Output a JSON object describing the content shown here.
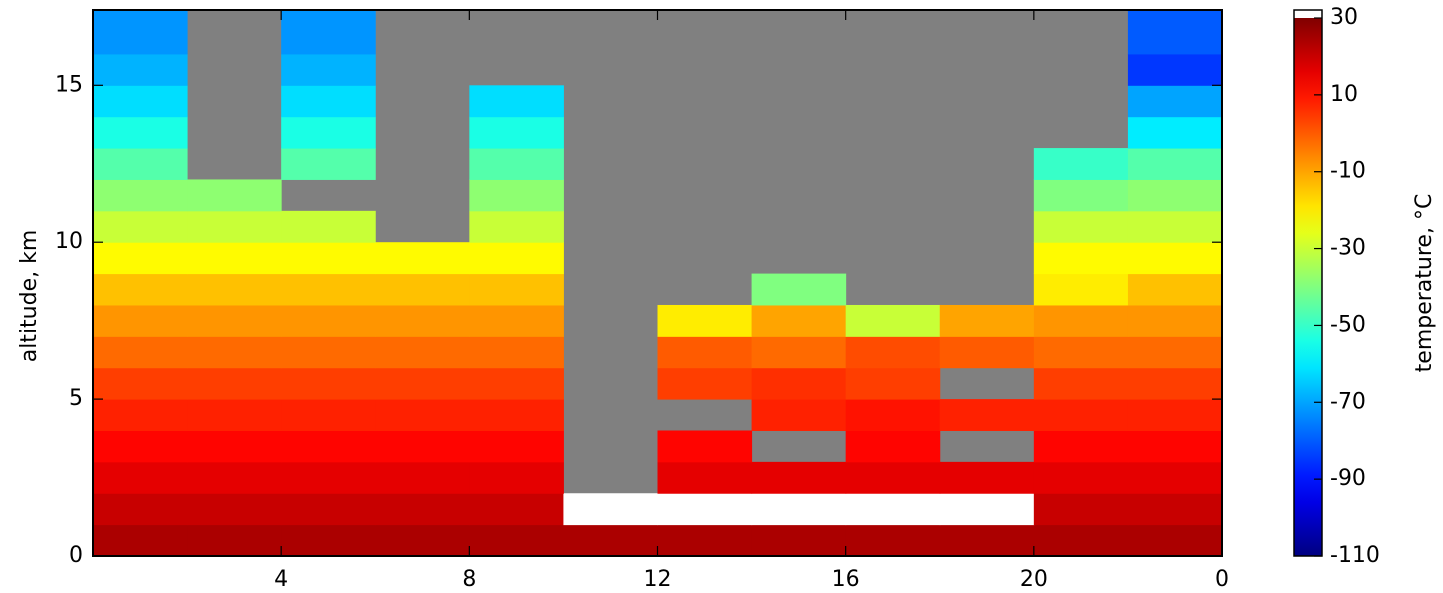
{
  "chart_data": {
    "type": "heatmap",
    "y_label": "altitude, km",
    "colorbar_label": "temperature, °C",
    "x_edges": [
      0,
      2,
      4,
      6,
      8,
      10,
      12,
      14,
      16,
      18,
      20,
      22,
      24
    ],
    "y_edges": [
      0,
      1,
      2,
      3,
      4,
      5,
      6,
      7,
      8,
      9,
      10,
      11,
      12,
      13,
      14,
      15,
      16,
      17.4
    ],
    "z": [
      [
        24,
        24,
        24,
        24,
        24,
        24,
        24,
        24,
        24,
        24,
        24,
        24
      ],
      [
        20,
        20,
        20,
        20,
        20,
        31,
        31,
        31,
        31,
        31,
        20,
        20
      ],
      [
        16,
        16,
        16,
        16,
        16,
        null,
        16,
        16,
        16,
        16,
        16,
        16
      ],
      [
        12,
        12,
        12,
        12,
        12,
        null,
        12,
        null,
        12,
        null,
        12,
        12
      ],
      [
        8,
        8,
        8,
        8,
        8,
        null,
        null,
        8,
        10,
        8,
        8,
        8
      ],
      [
        4,
        4,
        4,
        4,
        4,
        null,
        4,
        6,
        4,
        null,
        4,
        4
      ],
      [
        -2,
        -2,
        -2,
        -2,
        -2,
        null,
        0,
        -2,
        2,
        0,
        -2,
        -2
      ],
      [
        -8,
        -8,
        -8,
        -8,
        -8,
        null,
        -20,
        -10,
        -30,
        -10,
        -8,
        -8
      ],
      [
        -14,
        -14,
        -14,
        -14,
        -14,
        null,
        null,
        -40,
        null,
        null,
        -20,
        -14
      ],
      [
        -22,
        -22,
        -22,
        -22,
        -22,
        null,
        null,
        null,
        null,
        null,
        -22,
        -22
      ],
      [
        -30,
        -30,
        -30,
        null,
        -30,
        null,
        null,
        null,
        null,
        null,
        -30,
        -30
      ],
      [
        -38,
        -38,
        null,
        null,
        -38,
        null,
        null,
        null,
        null,
        null,
        -40,
        -38
      ],
      [
        -46,
        null,
        -46,
        null,
        -46,
        null,
        null,
        null,
        null,
        null,
        -50,
        -46
      ],
      [
        -54,
        null,
        -54,
        null,
        -54,
        null,
        null,
        null,
        null,
        null,
        null,
        -60
      ],
      [
        -62,
        null,
        -62,
        null,
        -62,
        null,
        null,
        null,
        null,
        null,
        null,
        -70
      ],
      [
        -68,
        null,
        -68,
        null,
        null,
        null,
        null,
        null,
        null,
        null,
        null,
        -85
      ],
      [
        -72,
        null,
        -72,
        null,
        null,
        null,
        null,
        null,
        null,
        null,
        null,
        -80
      ]
    ],
    "xlim": [
      0,
      24
    ],
    "ylim": [
      0,
      17.4
    ],
    "xticks": [
      4,
      8,
      12,
      16,
      20,
      {
        "value": 24,
        "label": "0"
      }
    ],
    "yticks": [
      0,
      5,
      10,
      15
    ],
    "clim": [
      -110,
      30
    ],
    "cticks": [
      30,
      10,
      -10,
      -30,
      -50,
      -70,
      -90,
      -110
    ],
    "colormap": "jet",
    "nan_color": "#808080",
    "over_color": "#ffffff"
  }
}
